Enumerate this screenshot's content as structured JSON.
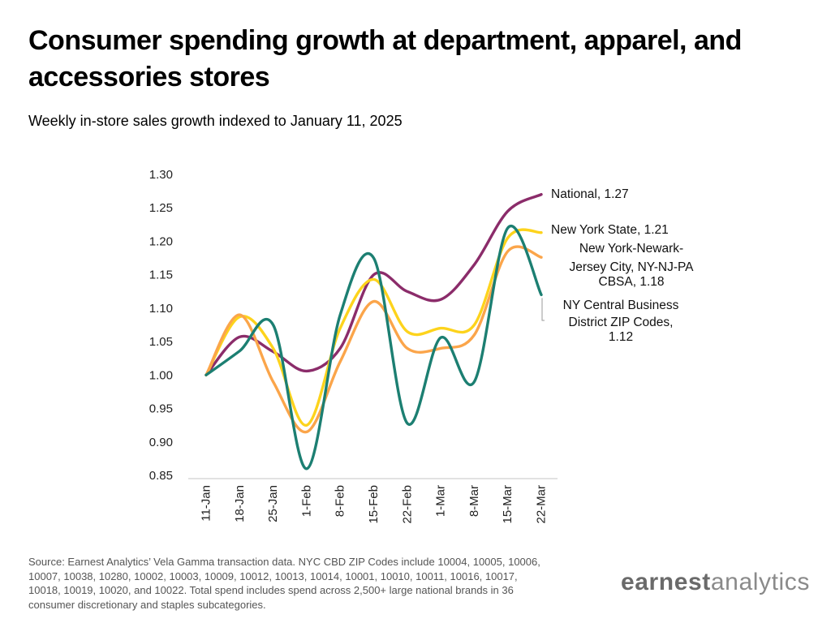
{
  "header": {
    "title": "Consumer spending growth at department, apparel, and accessories stores",
    "subtitle": "Weekly in-store sales growth indexed to January 11, 2025"
  },
  "chart_data": {
    "type": "line",
    "title": "Consumer spending growth at department, apparel, and accessories stores",
    "subtitle": "Weekly in-store sales growth indexed to January 11, 2025",
    "xlabel": "",
    "ylabel": "",
    "categories": [
      "11-Jan",
      "18-Jan",
      "25-Jan",
      "1-Feb",
      "8-Feb",
      "15-Feb",
      "22-Feb",
      "1-Mar",
      "8-Mar",
      "15-Mar",
      "22-Mar"
    ],
    "ylim": [
      0.85,
      1.3
    ],
    "yticks": [
      0.85,
      0.9,
      0.95,
      1.0,
      1.05,
      1.1,
      1.15,
      1.2,
      1.25,
      1.3
    ],
    "ytick_labels": [
      "0.85",
      "0.90",
      "0.95",
      "1.00",
      "1.05",
      "1.10",
      "1.15",
      "1.20",
      "1.25",
      "1.30"
    ],
    "grid": false,
    "legend": "direct labels at line ends",
    "series": [
      {
        "name": "National",
        "color": "#8B2C6A",
        "values": [
          1.0,
          1.057,
          1.035,
          1.006,
          1.04,
          1.15,
          1.125,
          1.113,
          1.165,
          1.245,
          1.27
        ],
        "end_label": [
          "National,  1.27"
        ]
      },
      {
        "name": "New York State",
        "color": "#FDD31C",
        "values": [
          1.0,
          1.087,
          1.04,
          0.925,
          1.07,
          1.143,
          1.065,
          1.07,
          1.075,
          1.205,
          1.213
        ],
        "end_label": [
          "New York State,  1.21"
        ]
      },
      {
        "name": "New York-Newark-Jersey City, NY-NJ-PA CBSA",
        "color": "#FBA54A",
        "values": [
          1.0,
          1.09,
          0.99,
          0.915,
          1.02,
          1.11,
          1.04,
          1.04,
          1.06,
          1.185,
          1.176
        ],
        "end_label": [
          "New York-Newark-",
          "Jersey City, NY-NJ-PA",
          "CBSA,  1.18"
        ]
      },
      {
        "name": "NY Central Business District ZIP Codes",
        "color": "#1C7F72",
        "values": [
          1.0,
          1.036,
          1.075,
          0.86,
          1.09,
          1.175,
          0.928,
          1.056,
          0.99,
          1.22,
          1.12
        ],
        "end_label": [
          "NY Central Business",
          "District ZIP Codes,",
          "1.12"
        ]
      }
    ]
  },
  "footer": {
    "source": "Source: Earnest Analytics’ Vela Gamma transaction data. NYC CBD ZIP Codes include 10004, 10005, 10006, 10007, 10038, 10280, 10002, 10003, 10009, 10012, 10013, 10014, 10001, 10010, 10011, 10016, 10017, 10018, 10019, 10020, and 10022. Total spend includes spend across 2,500+ large national brands in 36 consumer discretionary and staples subcategories.",
    "logo_bold": "earnest",
    "logo_light": "analytics"
  }
}
